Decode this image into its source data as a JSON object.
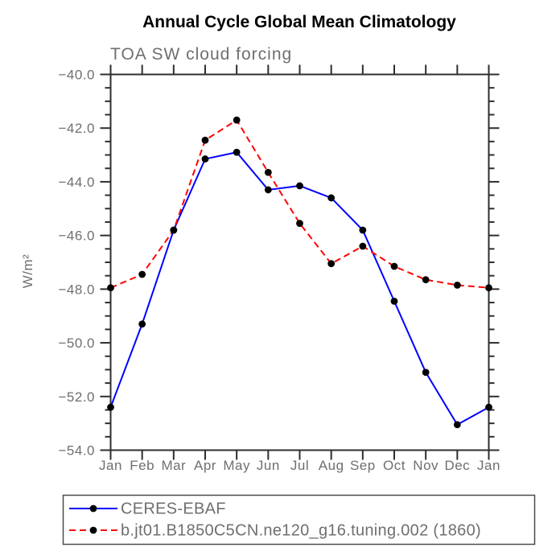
{
  "chart": {
    "colors": {
      "axis": "#2e2e2e",
      "text_gray": "#6f6f6f",
      "marker": "#000000",
      "observation_line": "#0000ff",
      "model_line": "#ff0000",
      "background": "#ffffff",
      "legend_border": "#4a4a4a"
    }
  },
  "chart_data": {
    "type": "line",
    "title": "Annual Cycle Global Mean Climatology",
    "subtitle": "TOA SW cloud forcing",
    "ylabel": "W/m²",
    "xlabel": "",
    "x_tick_labels": [
      "Jan",
      "Feb",
      "Mar",
      "Apr",
      "May",
      "Jun",
      "Jul",
      "Aug",
      "Sep",
      "Oct",
      "Nov",
      "Dec",
      "Jan"
    ],
    "y_tick_labels": [
      "−40.0",
      "−42.0",
      "−44.0",
      "−46.0",
      "−48.0",
      "−50.0",
      "−52.0",
      "−54.0"
    ],
    "y_tick_values": [
      -40.0,
      -42.0,
      -44.0,
      -46.0,
      -48.0,
      -50.0,
      -52.0,
      -54.0
    ],
    "ylim": [
      -54.0,
      -40.0
    ],
    "y_major_step": 2.0,
    "y_minor_step": 0.5,
    "grid": false,
    "legend_position": "bottom-left",
    "tick_style": "outward-all-four-sides",
    "series": [
      {
        "name": "CERES-EBAF",
        "color": "#0000ff",
        "line_style": "solid",
        "marker": "filled-circle",
        "marker_color": "#000000",
        "values": [
          -52.4,
          -49.3,
          -45.8,
          -43.15,
          -42.9,
          -44.3,
          -44.15,
          -44.6,
          -45.8,
          -48.45,
          -51.1,
          -53.05,
          -52.4
        ]
      },
      {
        "name": "b.jt01.B1850C5CN.ne120_g16.tuning.002 (1860)",
        "color": "#ff0000",
        "line_style": "dashed",
        "marker": "filled-circle",
        "marker_color": "#000000",
        "values": [
          -47.95,
          -47.45,
          -45.8,
          -42.45,
          -41.7,
          -43.65,
          -45.55,
          -47.05,
          -46.4,
          -47.15,
          -47.65,
          -47.85,
          -47.95
        ]
      }
    ]
  }
}
